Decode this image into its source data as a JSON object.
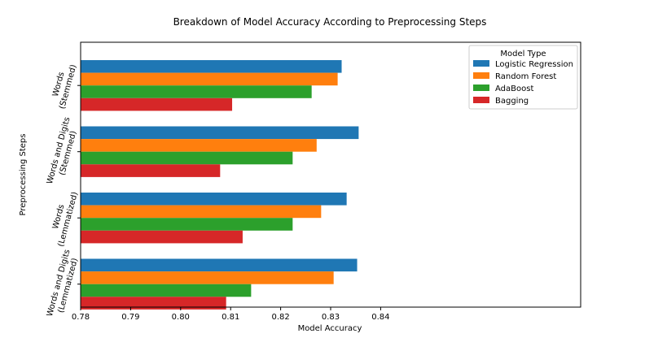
{
  "chart_data": {
    "type": "bar",
    "orientation": "horizontal",
    "title": "Breakdown of Model Accuracy According to Preprocessing Steps",
    "xlabel": "Model Accuracy",
    "ylabel": "Preprocessing Steps",
    "xlim": [
      0.78,
      0.88
    ],
    "xticks": [
      "0.78",
      "0.79",
      "0.80",
      "0.81",
      "0.82",
      "0.83",
      "0.84"
    ],
    "xtick_values": [
      0.78,
      0.79,
      0.8,
      0.81,
      0.82,
      0.83,
      0.84
    ],
    "grid": false,
    "legend_title": "Model Type",
    "legend_position": "top-right",
    "categories": [
      "Words\n(Stemmed)",
      "Words and Digits\n(Stemmed)",
      "Words\n(Lemmatized)",
      "Words and Digits\n(Lemmatized)"
    ],
    "series": [
      {
        "name": "Logistic Regression",
        "color": "#1f77b4",
        "values": [
          0.8322,
          0.8356,
          0.8332,
          0.8353
        ]
      },
      {
        "name": "Random Forest",
        "color": "#ff7f0e",
        "values": [
          0.8314,
          0.8272,
          0.8281,
          0.8306
        ]
      },
      {
        "name": "AdaBoost",
        "color": "#2ca02c",
        "values": [
          0.8262,
          0.8224,
          0.8224,
          0.8141
        ]
      },
      {
        "name": "Bagging",
        "color": "#d62728",
        "values": [
          0.8103,
          0.8079,
          0.8124,
          0.8091
        ]
      }
    ]
  }
}
